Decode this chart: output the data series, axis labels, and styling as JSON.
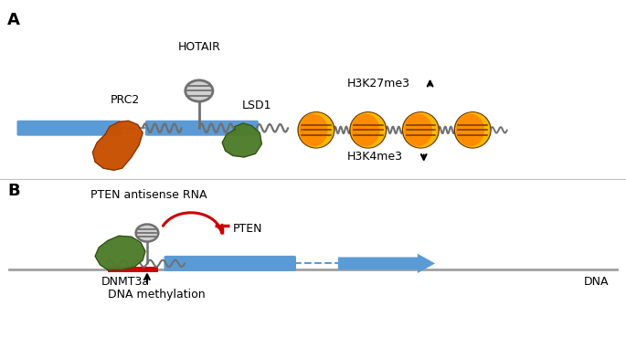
{
  "fig_width": 6.85,
  "fig_height": 3.81,
  "dpi": 100,
  "bg_color": "#ffffff",
  "panel_a_label": "A",
  "panel_b_label": "B",
  "label_fontsize": 13,
  "label_fontweight": "bold",
  "prc2_label": "PRC2",
  "hotair_label": "HOTAIR",
  "lsd1_label": "LSD1",
  "h3k27_label": "H3K27me3",
  "h3k4_label": "H3K4me3",
  "pten_as_label": "PTEN antisense RNA",
  "dnmt3a_label": "DNMT3a",
  "pten_label": "PTEN",
  "dna_label": "DNA",
  "dna_meth_label": "DNA methylation",
  "blue_color": "#5B9BD5",
  "orange_color": "#C85000",
  "green_color": "#4E7C2A",
  "red_color": "#CC0000",
  "gray_color": "#707070",
  "light_gray": "#B0B0B0",
  "black": "#000000",
  "nucleosome_orange": "#FF8C00",
  "nucleosome_yellow": "#FFB800",
  "nucleosome_dark": "#6B3A00",
  "text_fontsize": 9,
  "small_fontsize": 8
}
